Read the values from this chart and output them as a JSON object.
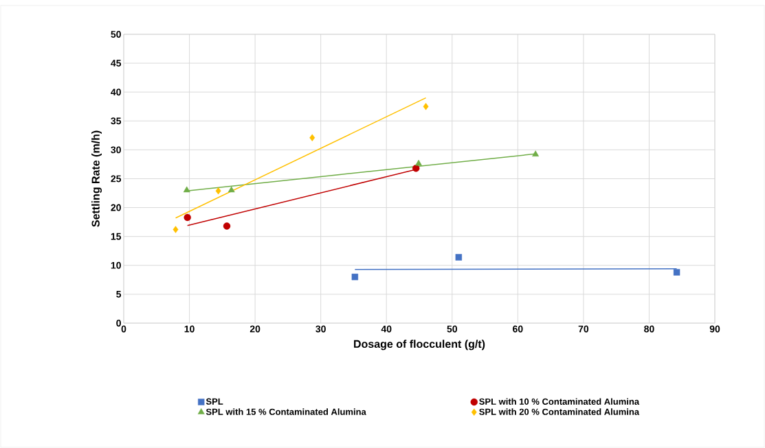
{
  "chart_data": {
    "type": "scatter",
    "xlabel": "Dosage of flocculent (g/t)",
    "ylabel": "Settling Rate (m/h)",
    "xlim": [
      0,
      90
    ],
    "xticks": [
      0,
      10,
      20,
      30,
      40,
      50,
      60,
      70,
      80,
      90
    ],
    "ylim": [
      0,
      50
    ],
    "yticks": [
      0,
      5,
      10,
      15,
      20,
      25,
      30,
      35,
      40,
      45,
      50
    ],
    "grid": true,
    "legend": "bottom",
    "series": [
      {
        "name": "SPL",
        "color": "#4472c4",
        "marker": "square",
        "x": [
          35.2,
          51.0,
          84.2
        ],
        "values": [
          8.0,
          11.4,
          8.8
        ]
      },
      {
        "name": "SPL with 10 % Contaminated Alumina",
        "color": "#c00000",
        "marker": "circle",
        "x": [
          9.7,
          15.7,
          44.5
        ],
        "values": [
          18.3,
          16.8,
          26.8
        ]
      },
      {
        "name": "SPL with 15 % Contaminated Alumina",
        "color": "#70ad47",
        "marker": "triangle",
        "x": [
          9.6,
          16.4,
          44.9,
          62.7
        ],
        "values": [
          23.0,
          23.0,
          27.6,
          29.2
        ]
      },
      {
        "name": "SPL with 20 % Contaminated Alumina",
        "color": "#ffc000",
        "marker": "diamond",
        "x": [
          7.9,
          14.4,
          28.7,
          46.0
        ],
        "values": [
          16.2,
          22.9,
          32.1,
          37.5
        ]
      },
      {
        "type": "line",
        "color": "#4472c4",
        "x": [
          35.2,
          84.2
        ],
        "values": [
          9.3,
          9.4
        ]
      },
      {
        "type": "line",
        "color": "#c00000",
        "x": [
          9.7,
          44.5
        ],
        "values": [
          16.9,
          26.6
        ]
      },
      {
        "type": "line",
        "color": "#70ad47",
        "x": [
          9.6,
          62.7
        ],
        "values": [
          22.9,
          29.3
        ]
      },
      {
        "type": "line",
        "color": "#ffc000",
        "x": [
          7.9,
          46.0
        ],
        "values": [
          18.2,
          39.0
        ]
      }
    ]
  }
}
